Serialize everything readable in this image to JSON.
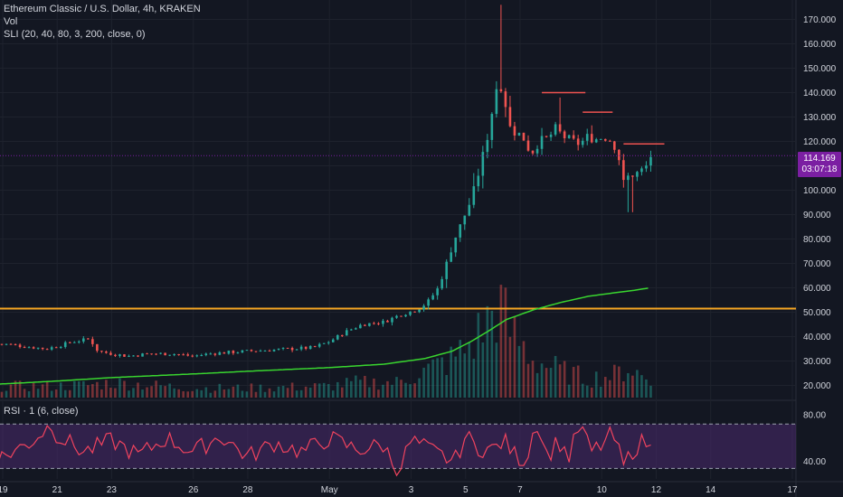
{
  "legend": {
    "symbol": "Ethereum Classic / U.S. Dollar, 4h, KRAKEN",
    "volume": "Vol",
    "indicator": "SLI (20, 40, 80, 3, 200, close, 0)",
    "rsi": "RSI · 1 (6, close)"
  },
  "price_badge": {
    "price": "114.169",
    "countdown": "03:07:18"
  },
  "colors": {
    "background": "#131722",
    "up": "#26a69a",
    "down": "#ef5350",
    "ma": "#39d62f",
    "support": "#f5a623",
    "resistance": "#ef5350",
    "rsi_line": "#f0435e",
    "rsi_band": "#4a2a6e",
    "badge": "#7b1fa2"
  },
  "chart_data": {
    "type": "candlestick",
    "price_axis": {
      "min": 15,
      "max": 175,
      "ticks": [
        "170.000",
        "160.000",
        "150.000",
        "140.000",
        "130.000",
        "120.000",
        "110.000",
        "100.000",
        "90.000",
        "80.000",
        "70.000",
        "60.000",
        "50.000",
        "40.000",
        "30.000",
        "20.000"
      ]
    },
    "rsi_axis": {
      "min": 25,
      "max": 90,
      "ticks": [
        "80.00",
        "40.00"
      ],
      "upper_band": 72,
      "lower_band": 34
    },
    "x_labels": [
      {
        "label": "19",
        "day": 19
      },
      {
        "label": "21",
        "day": 21
      },
      {
        "label": "23",
        "day": 23
      },
      {
        "label": "26",
        "day": 26
      },
      {
        "label": "28",
        "day": 28
      },
      {
        "label": "May",
        "day": 31
      },
      {
        "label": "3",
        "day": 34
      },
      {
        "label": "5",
        "day": 36
      },
      {
        "label": "7",
        "day": 38
      },
      {
        "label": "10",
        "day": 41
      },
      {
        "label": "12",
        "day": 43
      },
      {
        "label": "14",
        "day": 45
      },
      {
        "label": "17",
        "day": 48
      }
    ],
    "support_level": 51.5,
    "resistance_segments": [
      {
        "from_day": 38.8,
        "to_day": 40.4,
        "price": 140
      },
      {
        "from_day": 40.3,
        "to_day": 41.4,
        "price": 132
      },
      {
        "from_day": 41.8,
        "to_day": 43.3,
        "price": 119
      }
    ],
    "price_keypoints": [
      [
        19,
        37
      ],
      [
        19.8,
        36
      ],
      [
        20.6,
        35
      ],
      [
        21,
        36
      ],
      [
        21.6,
        38
      ],
      [
        22.2,
        39
      ],
      [
        22.5,
        34
      ],
      [
        23,
        33
      ],
      [
        23.6,
        32
      ],
      [
        24.4,
        33
      ],
      [
        25.2,
        33
      ],
      [
        26,
        32
      ],
      [
        26.6,
        33
      ],
      [
        27.2,
        33.5
      ],
      [
        28,
        34
      ],
      [
        28.8,
        34.5
      ],
      [
        29.6,
        35
      ],
      [
        30.4,
        35.5
      ],
      [
        31,
        38
      ],
      [
        31.6,
        42
      ],
      [
        32.2,
        45
      ],
      [
        33,
        46
      ],
      [
        33.6,
        49
      ],
      [
        34.2,
        51
      ],
      [
        34.6,
        54
      ],
      [
        35,
        60
      ],
      [
        35.3,
        70
      ],
      [
        35.6,
        80
      ],
      [
        35.9,
        88
      ],
      [
        36.2,
        96
      ],
      [
        36.5,
        108
      ],
      [
        36.8,
        122
      ],
      [
        37,
        134
      ],
      [
        37.2,
        146
      ],
      [
        37.4,
        140
      ],
      [
        37.6,
        126
      ],
      [
        37.8,
        124
      ],
      [
        38.1,
        122
      ],
      [
        38.4,
        115
      ],
      [
        38.7,
        120
      ],
      [
        39,
        121
      ],
      [
        39.3,
        125
      ],
      [
        39.6,
        122
      ],
      [
        39.9,
        120
      ],
      [
        40.2,
        119
      ],
      [
        40.5,
        122
      ],
      [
        40.8,
        121
      ],
      [
        41.1,
        122
      ],
      [
        41.4,
        120
      ],
      [
        41.6,
        115
      ],
      [
        41.8,
        103
      ],
      [
        42,
        106
      ],
      [
        42.3,
        107
      ],
      [
        42.6,
        109
      ],
      [
        42.8,
        114
      ]
    ],
    "ma_keypoints": [
      [
        18.8,
        20.5
      ],
      [
        21,
        21.8
      ],
      [
        23,
        23.2
      ],
      [
        26,
        24.7
      ],
      [
        28,
        25.8
      ],
      [
        31,
        27.3
      ],
      [
        33,
        28.7
      ],
      [
        34.5,
        31
      ],
      [
        35.5,
        34
      ],
      [
        36.2,
        38
      ],
      [
        36.8,
        42
      ],
      [
        37.5,
        47
      ],
      [
        38.5,
        51
      ],
      [
        39.5,
        54
      ],
      [
        40.5,
        56.5
      ],
      [
        41.5,
        58
      ],
      [
        42.2,
        59
      ],
      [
        42.8,
        60
      ]
    ],
    "volume_keypoints": [
      [
        19,
        3
      ],
      [
        21,
        3
      ],
      [
        22.5,
        3.5
      ],
      [
        23,
        4
      ],
      [
        26,
        2.5
      ],
      [
        28,
        2.5
      ],
      [
        31,
        3
      ],
      [
        32,
        4
      ],
      [
        33.5,
        4
      ],
      [
        34.5,
        7
      ],
      [
        35.5,
        10
      ],
      [
        36.2,
        14
      ],
      [
        36.8,
        20
      ],
      [
        37.2,
        25
      ],
      [
        37.6,
        18
      ],
      [
        38.5,
        10
      ],
      [
        39.5,
        7
      ],
      [
        40.5,
        5
      ],
      [
        41.5,
        6
      ],
      [
        42,
        8
      ],
      [
        42.8,
        4
      ]
    ],
    "rsi_keypoints": [
      [
        19,
        44
      ],
      [
        20,
        56
      ],
      [
        20.8,
        72
      ],
      [
        21,
        62
      ],
      [
        22,
        48
      ],
      [
        23,
        58
      ],
      [
        24,
        45
      ],
      [
        25,
        60
      ],
      [
        26,
        48
      ],
      [
        27,
        62
      ],
      [
        28,
        44
      ],
      [
        29,
        56
      ],
      [
        30,
        48
      ],
      [
        31,
        60
      ],
      [
        32,
        50
      ],
      [
        33,
        54
      ],
      [
        33.5,
        30
      ],
      [
        34,
        58
      ],
      [
        35,
        46
      ],
      [
        35.6,
        40
      ],
      [
        36,
        62
      ],
      [
        36.4,
        52
      ],
      [
        37,
        50
      ],
      [
        37.4,
        58
      ],
      [
        37.8,
        46
      ],
      [
        38.2,
        40
      ],
      [
        38.6,
        76
      ],
      [
        39,
        44
      ],
      [
        39.4,
        58
      ],
      [
        39.8,
        44
      ],
      [
        40.2,
        72
      ],
      [
        40.6,
        48
      ],
      [
        41,
        54
      ],
      [
        41.4,
        64
      ],
      [
        41.8,
        36
      ],
      [
        42.2,
        52
      ],
      [
        42.6,
        58
      ],
      [
        42.8,
        50
      ]
    ]
  }
}
